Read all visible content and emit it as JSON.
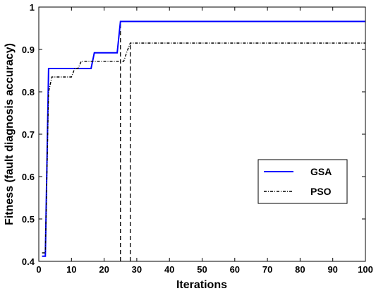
{
  "chart_data": {
    "type": "line",
    "xlabel": "Iterations",
    "ylabel": "Fitness (fault diagnosis accuracy)",
    "xlim": [
      0,
      100
    ],
    "ylim": [
      0.4,
      1
    ],
    "xticks": [
      "0",
      "10",
      "20",
      "30",
      "40",
      "50",
      "60",
      "70",
      "80",
      "90",
      "100"
    ],
    "yticks": [
      "0.4",
      "0.5",
      "0.6",
      "0.7",
      "0.8",
      "0.9",
      "1"
    ],
    "grid": false,
    "legend_position": "lower-right",
    "series": [
      {
        "name": "GSA",
        "color": "#0000ff",
        "style": "solid",
        "points": [
          [
            1,
            0.412
          ],
          [
            2,
            0.412
          ],
          [
            3,
            0.855
          ],
          [
            16,
            0.855
          ],
          [
            17,
            0.892
          ],
          [
            24,
            0.892
          ],
          [
            25,
            0.966
          ],
          [
            100,
            0.966
          ]
        ]
      },
      {
        "name": "PSO",
        "color": "#000000",
        "style": "dashdot",
        "points": [
          [
            1,
            0.42
          ],
          [
            2,
            0.42
          ],
          [
            3,
            0.8
          ],
          [
            4,
            0.835
          ],
          [
            10,
            0.835
          ],
          [
            11,
            0.855
          ],
          [
            12,
            0.855
          ],
          [
            13,
            0.872
          ],
          [
            26,
            0.872
          ],
          [
            27,
            0.895
          ],
          [
            28,
            0.915
          ],
          [
            100,
            0.915
          ]
        ]
      }
    ],
    "reference_lines": [
      {
        "x": 25,
        "style": "dashed",
        "color": "#000000"
      },
      {
        "x": 28,
        "style": "dashed",
        "color": "#000000"
      }
    ]
  }
}
